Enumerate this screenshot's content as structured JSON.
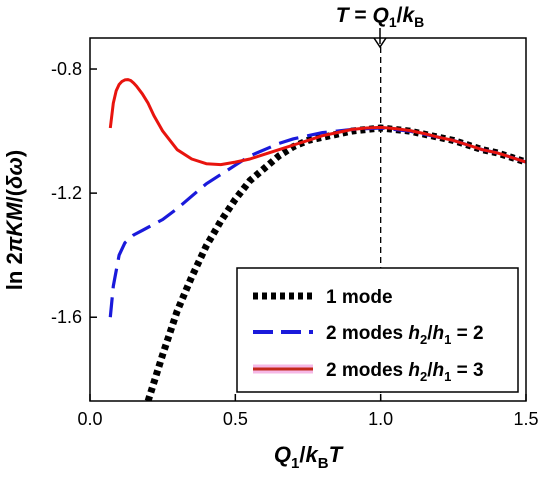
{
  "chart_data": {
    "type": "line",
    "xlabel": "Q1/kBT",
    "ylabel": "ln 2πKM/(δω)",
    "xlim": [
      0,
      1.5
    ],
    "ylim": [
      -1.87,
      -0.7
    ],
    "x_ticks": [
      0.0,
      0.5,
      1.0,
      1.5
    ],
    "x_tick_labels": [
      "0.0",
      "0.5",
      "1.0",
      "1.5"
    ],
    "y_ticks": [
      -0.8,
      -1.2,
      -1.6
    ],
    "y_tick_labels": [
      "-0.8",
      "-1.2",
      "-1.6"
    ],
    "annotation": {
      "text": "T = Q1/kB",
      "x": 1.0
    },
    "legend_position": "bottom-right",
    "series": [
      {
        "name": "1 mode",
        "style": "dotted",
        "color": "#000000",
        "x": [
          0.2,
          0.25,
          0.3,
          0.35,
          0.4,
          0.45,
          0.5,
          0.55,
          0.6,
          0.65,
          0.7,
          0.75,
          0.8,
          0.85,
          0.9,
          0.95,
          1.0,
          1.05,
          1.1,
          1.15,
          1.2,
          1.25,
          1.3,
          1.35,
          1.4,
          1.45,
          1.5
        ],
        "y": [
          -1.87,
          -1.72,
          -1.58,
          -1.47,
          -1.37,
          -1.29,
          -1.22,
          -1.16,
          -1.12,
          -1.08,
          -1.05,
          -1.03,
          -1.02,
          -1.01,
          -1.0,
          -0.995,
          -0.99,
          -0.995,
          -1.0,
          -1.01,
          -1.02,
          -1.03,
          -1.045,
          -1.06,
          -1.07,
          -1.085,
          -1.1
        ]
      },
      {
        "name": "2 modes h2/h1 = 2",
        "style": "dashed",
        "color": "#1a1adb",
        "x": [
          0.07,
          0.08,
          0.09,
          0.1,
          0.12,
          0.15,
          0.18,
          0.2,
          0.25,
          0.3,
          0.35,
          0.4,
          0.45,
          0.5,
          0.55,
          0.6,
          0.65,
          0.7,
          0.75,
          0.8,
          0.85,
          0.9,
          0.95,
          1.0,
          1.05,
          1.1,
          1.15,
          1.2,
          1.25,
          1.3,
          1.35,
          1.4,
          1.45,
          1.5
        ],
        "y": [
          -1.6,
          -1.5,
          -1.45,
          -1.4,
          -1.36,
          -1.335,
          -1.32,
          -1.31,
          -1.285,
          -1.25,
          -1.21,
          -1.17,
          -1.14,
          -1.11,
          -1.08,
          -1.06,
          -1.04,
          -1.025,
          -1.015,
          -1.005,
          -1.0,
          -0.995,
          -0.992,
          -0.99,
          -0.995,
          -1.0,
          -1.01,
          -1.02,
          -1.03,
          -1.045,
          -1.06,
          -1.07,
          -1.085,
          -1.1
        ]
      },
      {
        "name": "2 modes h2/h1 = 3",
        "style": "solid",
        "color": "#e8140e",
        "x": [
          0.07,
          0.08,
          0.09,
          0.1,
          0.11,
          0.12,
          0.13,
          0.14,
          0.15,
          0.16,
          0.18,
          0.2,
          0.22,
          0.25,
          0.3,
          0.35,
          0.4,
          0.45,
          0.5,
          0.55,
          0.6,
          0.65,
          0.7,
          0.75,
          0.8,
          0.85,
          0.9,
          0.95,
          1.0,
          1.05,
          1.1,
          1.15,
          1.2,
          1.25,
          1.3,
          1.35,
          1.4,
          1.45,
          1.5
        ],
        "y": [
          -0.99,
          -0.91,
          -0.87,
          -0.85,
          -0.84,
          -0.835,
          -0.834,
          -0.837,
          -0.845,
          -0.855,
          -0.88,
          -0.91,
          -0.95,
          -1.0,
          -1.06,
          -1.09,
          -1.105,
          -1.108,
          -1.1,
          -1.09,
          -1.075,
          -1.06,
          -1.045,
          -1.03,
          -1.015,
          -1.005,
          -0.995,
          -0.99,
          -0.988,
          -0.992,
          -0.998,
          -1.008,
          -1.02,
          -1.03,
          -1.045,
          -1.06,
          -1.07,
          -1.085,
          -1.1
        ]
      }
    ]
  }
}
